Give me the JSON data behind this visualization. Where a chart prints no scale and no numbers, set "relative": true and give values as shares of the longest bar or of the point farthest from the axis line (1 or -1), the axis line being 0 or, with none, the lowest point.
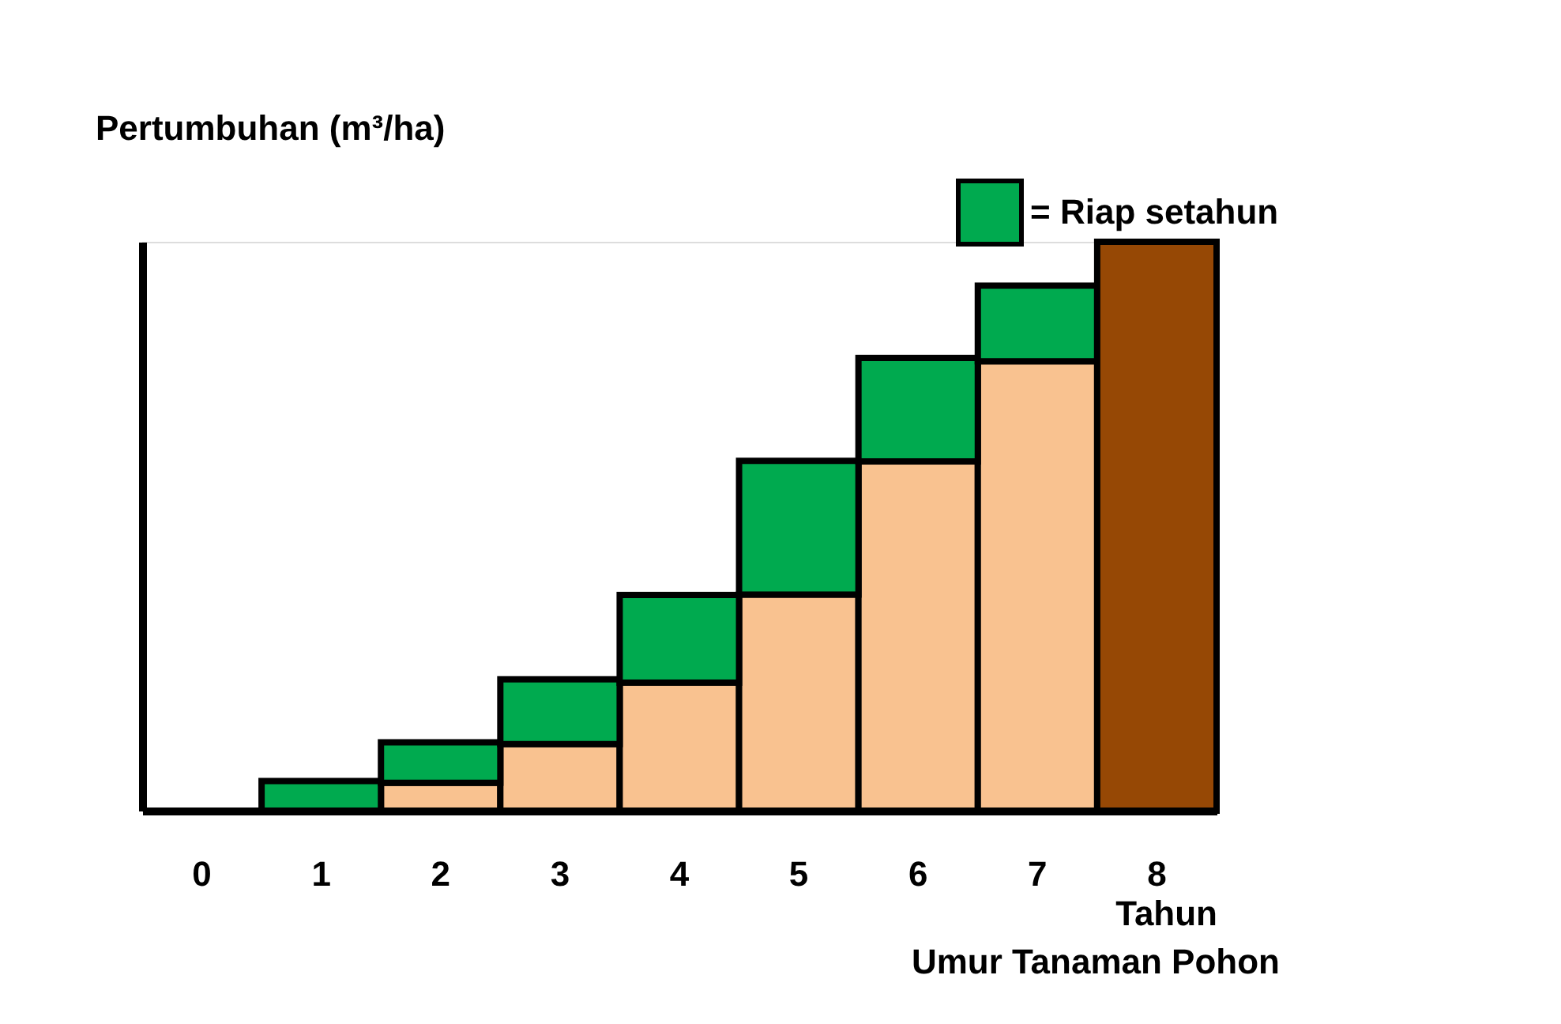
{
  "chart_data": {
    "type": "bar",
    "stacked": true,
    "relative": true,
    "xlabel": "Tahun",
    "ylabel": "Pertumbuhan (m³/ha)",
    "annotations": [
      "Umur Tanaman Pohon"
    ],
    "categories": [
      "0",
      "1",
      "2",
      "3",
      "4",
      "5",
      "6",
      "7",
      "8"
    ],
    "legend": "top right",
    "series": [
      {
        "color": "#f9c290",
        "values": [
          null,
          0,
          0.049,
          0.117,
          0.225,
          0.38,
          0.614,
          0.79,
          null
        ]
      },
      {
        "name": "= Riap setahun",
        "color": "#00aa4f",
        "values": [
          null,
          0.052,
          0.071,
          0.114,
          0.154,
          0.235,
          0.182,
          0.133,
          null
        ]
      },
      {
        "color": "#964805",
        "values": [
          null,
          null,
          null,
          null,
          null,
          null,
          null,
          null,
          1
        ]
      }
    ]
  }
}
